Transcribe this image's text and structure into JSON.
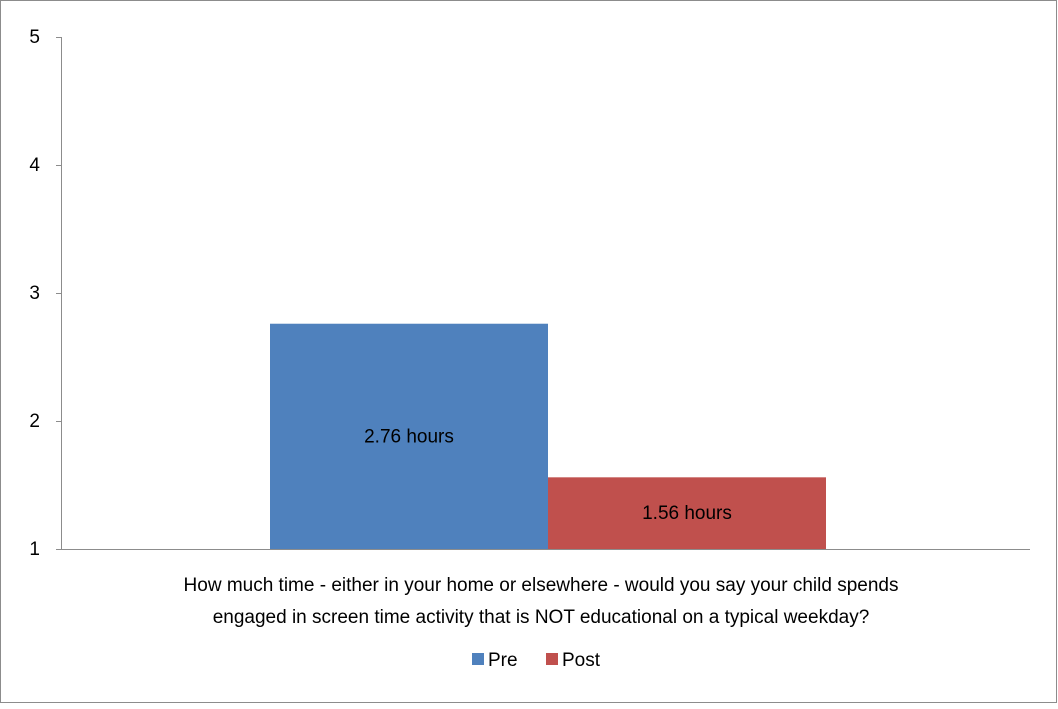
{
  "chart_data": {
    "type": "bar",
    "xlabel": "How much time - either in your home or elsewhere - would you say your child spends engaged in screen time activity that is NOT educational on a typical weekday?",
    "xlabel_lines": [
      "How much time - either in your home or elsewhere - would you say your child spends",
      "engaged in screen time activity that is NOT educational on a typical weekday?"
    ],
    "ylabel": "",
    "ylim": [
      1,
      5
    ],
    "yticks": [
      "1",
      "2",
      "3",
      "4",
      "5"
    ],
    "grid": false,
    "legend_position": "bottom",
    "series": [
      {
        "name": "Pre",
        "value": 2.76,
        "label": "2.76 hours",
        "color": "#4f81bd"
      },
      {
        "name": "Post",
        "value": 1.56,
        "label": "1.56 hours",
        "color": "#c0504d"
      }
    ]
  }
}
